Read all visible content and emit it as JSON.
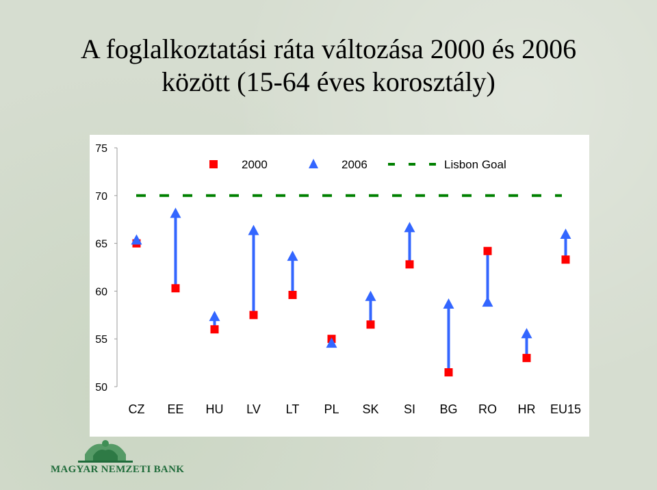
{
  "title": {
    "line1": "A foglalkoztatási ráta változása 2000 és 2006",
    "line2": "között (15-64 éves korosztály)"
  },
  "logo": {
    "text": "MAGYAR NEMZETI BANK"
  },
  "colors": {
    "series_2000": "#ff0000",
    "series_2006": "#3366ff",
    "lisbon_goal": "#008000",
    "arrow": "#3366ff"
  },
  "chart_data": {
    "type": "scatter",
    "categories": [
      "CZ",
      "EE",
      "HU",
      "LV",
      "LT",
      "PL",
      "SK",
      "SI",
      "BG",
      "RO",
      "HR",
      "EU15"
    ],
    "series": [
      {
        "name": "2000",
        "marker": "square",
        "values": [
          65.0,
          60.3,
          56.0,
          57.5,
          59.6,
          55.0,
          56.5,
          62.8,
          51.5,
          64.2,
          53.0,
          63.3
        ]
      },
      {
        "name": "2006",
        "marker": "triangle",
        "values": [
          65.3,
          68.1,
          57.3,
          66.3,
          63.6,
          54.5,
          59.4,
          66.6,
          58.6,
          58.8,
          55.5,
          65.9
        ]
      }
    ],
    "reference_line": {
      "name": "Lisbon Goal",
      "value": 70,
      "style": "dashed"
    },
    "arrows": "from 2000 to 2006 value per category",
    "ylim": [
      50,
      75
    ],
    "yticks": [
      "75",
      "70",
      "65",
      "60",
      "55",
      "50"
    ],
    "ytick_values": [
      75,
      70,
      65,
      60,
      55,
      50
    ],
    "grid": false,
    "legend_position": "top-right",
    "xlabel": "",
    "ylabel": ""
  }
}
